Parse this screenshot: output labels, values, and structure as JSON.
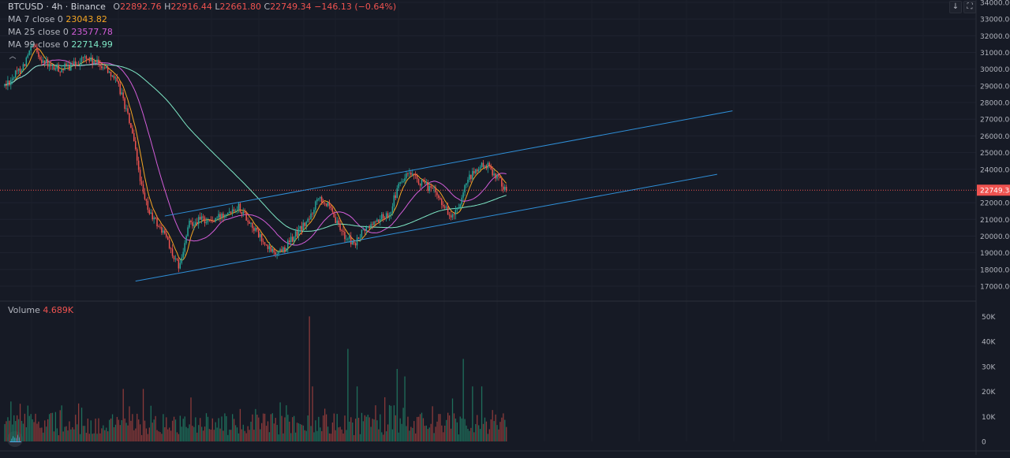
{
  "header": {
    "symbol": "BTCUSD",
    "interval": "4h",
    "exchange": "Binance",
    "ohlc_open_label": "O",
    "open": "22892.76",
    "ohlc_high_label": "H",
    "high": "22916.44",
    "ohlc_low_label": "L",
    "low": "22661.80",
    "ohlc_close_label": "C",
    "close": "22749.34",
    "change": "−146.13 (−0.64%)"
  },
  "indicators": [
    {
      "label": "MA 7 close 0",
      "value": "23043.82",
      "color": "#f5a623"
    },
    {
      "label": "MA 25 close 0",
      "value": "23577.78",
      "color": "#d35dd9"
    },
    {
      "label": "MA 99 close 0",
      "value": "22714.99",
      "color": "#7ee8c6"
    }
  ],
  "volume": {
    "label": "Volume",
    "value": "4.689K"
  },
  "price_axis": {
    "ticks": [
      "34000.00",
      "33000.00",
      "32000.00",
      "31000.00",
      "30000.00",
      "29000.00",
      "28000.00",
      "27000.00",
      "26000.00",
      "25000.00",
      "24000.00",
      "22000.00",
      "21000.00",
      "20000.00",
      "19000.00",
      "18000.00",
      "17000.00"
    ],
    "current_price": "22749.34"
  },
  "volume_axis": {
    "ticks": [
      "50K",
      "40K",
      "30K",
      "20K",
      "10K",
      "0"
    ]
  },
  "buttons": {
    "scroll_down_icon": "arrow-down-icon",
    "fullscreen_icon": "fullscreen-icon"
  },
  "colors": {
    "up": "#26a69a",
    "down": "#ef5350",
    "ma7": "#f5a623",
    "ma25": "#d35dd9",
    "ma99": "#7ee8c6",
    "channel": "#2f8fd8",
    "price_tag": "#ef5350",
    "background": "#161a25"
  },
  "chart_data": {
    "type": "candlestick",
    "price_range": [
      16500,
      34000
    ],
    "volume_range": [
      0,
      52000
    ],
    "anchors": [
      {
        "i": 0,
        "p": 29000
      },
      {
        "i": 6,
        "p": 29600
      },
      {
        "i": 12,
        "p": 30200
      },
      {
        "i": 18,
        "p": 31400
      },
      {
        "i": 24,
        "p": 30600
      },
      {
        "i": 30,
        "p": 30100
      },
      {
        "i": 36,
        "p": 30000
      },
      {
        "i": 44,
        "p": 30200
      },
      {
        "i": 52,
        "p": 30700
      },
      {
        "i": 58,
        "p": 30400
      },
      {
        "i": 64,
        "p": 30200
      },
      {
        "i": 70,
        "p": 29700
      },
      {
        "i": 76,
        "p": 28500
      },
      {
        "i": 82,
        "p": 26500
      },
      {
        "i": 86,
        "p": 24500
      },
      {
        "i": 90,
        "p": 22400
      },
      {
        "i": 94,
        "p": 21400
      },
      {
        "i": 100,
        "p": 20600
      },
      {
        "i": 106,
        "p": 19800
      },
      {
        "i": 110,
        "p": 18500
      },
      {
        "i": 114,
        "p": 18200
      },
      {
        "i": 120,
        "p": 20800
      },
      {
        "i": 128,
        "p": 21000
      },
      {
        "i": 136,
        "p": 20900
      },
      {
        "i": 144,
        "p": 21500
      },
      {
        "i": 152,
        "p": 21800
      },
      {
        "i": 158,
        "p": 21000
      },
      {
        "i": 164,
        "p": 20200
      },
      {
        "i": 170,
        "p": 19300
      },
      {
        "i": 176,
        "p": 19000
      },
      {
        "i": 182,
        "p": 19300
      },
      {
        "i": 190,
        "p": 20200
      },
      {
        "i": 198,
        "p": 21000
      },
      {
        "i": 204,
        "p": 22500
      },
      {
        "i": 210,
        "p": 21800
      },
      {
        "i": 216,
        "p": 20700
      },
      {
        "i": 222,
        "p": 19900
      },
      {
        "i": 228,
        "p": 19500
      },
      {
        "i": 232,
        "p": 20200
      },
      {
        "i": 240,
        "p": 20800
      },
      {
        "i": 250,
        "p": 21400
      },
      {
        "i": 256,
        "p": 23000
      },
      {
        "i": 262,
        "p": 23700
      },
      {
        "i": 270,
        "p": 23200
      },
      {
        "i": 278,
        "p": 22800
      },
      {
        "i": 286,
        "p": 21800
      },
      {
        "i": 290,
        "p": 21100
      },
      {
        "i": 296,
        "p": 21700
      },
      {
        "i": 300,
        "p": 23200
      },
      {
        "i": 306,
        "p": 23900
      },
      {
        "i": 312,
        "p": 24300
      },
      {
        "i": 318,
        "p": 23800
      },
      {
        "i": 322,
        "p": 23300
      },
      {
        "i": 326,
        "p": 22750
      }
    ],
    "volume_spikes": [
      {
        "i": 198,
        "v": 50000
      },
      {
        "i": 223,
        "v": 37000
      },
      {
        "i": 298,
        "v": 33000
      },
      {
        "i": 255,
        "v": 29000
      },
      {
        "i": 77,
        "v": 21000
      },
      {
        "i": 90,
        "v": 21000
      },
      {
        "i": 260,
        "v": 26000
      },
      {
        "i": 200,
        "v": 22000
      },
      {
        "i": 229,
        "v": 22000
      },
      {
        "i": 304,
        "v": 22000
      },
      {
        "i": 310,
        "v": 22000
      }
    ],
    "channel": {
      "upper_start": {
        "i": 104,
        "p": 21200
      },
      "upper_end": {
        "i": 473,
        "p": 27500
      },
      "lower_start": {
        "i": 85,
        "p": 17300
      },
      "lower_end": {
        "i": 463,
        "p": 23700
      }
    }
  }
}
